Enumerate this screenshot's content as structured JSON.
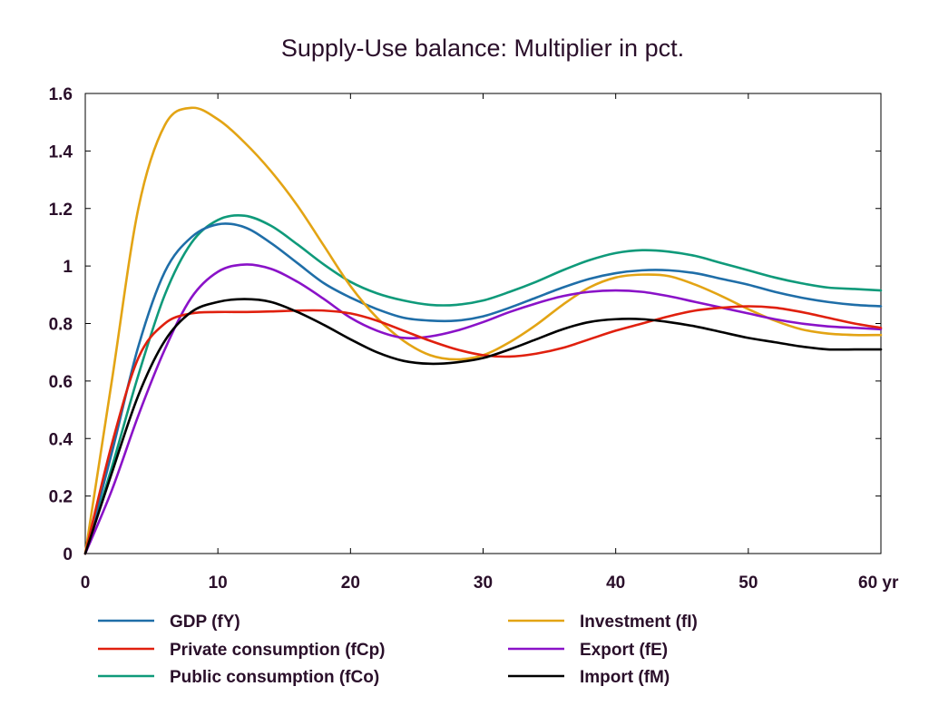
{
  "chart_data": {
    "type": "line",
    "title": "Supply-Use balance: Multiplier in pct.",
    "xlabel": "",
    "ylabel": "",
    "x_unit_label": "yr",
    "xlim": [
      0,
      60
    ],
    "ylim": [
      0,
      1.6
    ],
    "x_ticks": [
      0,
      10,
      20,
      30,
      40,
      50,
      60
    ],
    "x_tick_labels": [
      "0",
      "10",
      "20",
      "30",
      "40",
      "50",
      "60 yr"
    ],
    "y_ticks": [
      0,
      0.2,
      0.4,
      0.6,
      0.8,
      1,
      1.2,
      1.4,
      1.6
    ],
    "y_tick_labels": [
      "0",
      "0.2",
      "0.4",
      "0.6",
      "0.8",
      "1",
      "1.2",
      "1.4",
      "1.6"
    ],
    "grid": false,
    "legend_position": "bottom",
    "x": [
      0,
      2,
      4,
      6,
      8,
      10,
      12,
      14,
      16,
      18,
      20,
      22,
      24,
      26,
      28,
      30,
      32,
      34,
      36,
      38,
      40,
      42,
      44,
      46,
      48,
      50,
      52,
      54,
      56,
      58,
      60
    ],
    "series": [
      {
        "name": "GDP (fY)",
        "color": "#1f6ea8",
        "values": [
          0,
          0.35,
          0.72,
          0.98,
          1.1,
          1.145,
          1.135,
          1.08,
          1.01,
          0.94,
          0.89,
          0.85,
          0.82,
          0.81,
          0.81,
          0.825,
          0.855,
          0.89,
          0.925,
          0.955,
          0.975,
          0.985,
          0.985,
          0.975,
          0.955,
          0.935,
          0.91,
          0.89,
          0.875,
          0.865,
          0.86
        ]
      },
      {
        "name": "Investment (fI)",
        "color": "#e3a414",
        "values": [
          0,
          0.6,
          1.2,
          1.49,
          1.55,
          1.51,
          1.43,
          1.33,
          1.21,
          1.07,
          0.93,
          0.82,
          0.74,
          0.69,
          0.675,
          0.69,
          0.735,
          0.795,
          0.865,
          0.925,
          0.96,
          0.97,
          0.965,
          0.935,
          0.895,
          0.85,
          0.81,
          0.78,
          0.765,
          0.76,
          0.76
        ]
      },
      {
        "name": "Private consumption (fCp)",
        "color": "#e0200e",
        "values": [
          0,
          0.38,
          0.68,
          0.8,
          0.835,
          0.84,
          0.84,
          0.842,
          0.845,
          0.845,
          0.835,
          0.81,
          0.775,
          0.74,
          0.71,
          0.69,
          0.685,
          0.695,
          0.715,
          0.745,
          0.775,
          0.8,
          0.825,
          0.845,
          0.855,
          0.86,
          0.855,
          0.84,
          0.82,
          0.8,
          0.785
        ]
      },
      {
        "name": "Export (fE)",
        "color": "#8a12c8",
        "values": [
          0,
          0.22,
          0.48,
          0.71,
          0.89,
          0.98,
          1.005,
          0.99,
          0.945,
          0.885,
          0.82,
          0.775,
          0.75,
          0.755,
          0.775,
          0.805,
          0.84,
          0.87,
          0.895,
          0.91,
          0.915,
          0.91,
          0.895,
          0.875,
          0.855,
          0.835,
          0.815,
          0.8,
          0.79,
          0.785,
          0.78
        ]
      },
      {
        "name": "Public consumption (fCo)",
        "color": "#0f9a7a",
        "values": [
          0,
          0.3,
          0.62,
          0.9,
          1.08,
          1.16,
          1.175,
          1.14,
          1.075,
          1.005,
          0.945,
          0.905,
          0.88,
          0.865,
          0.865,
          0.88,
          0.91,
          0.945,
          0.985,
          1.02,
          1.045,
          1.055,
          1.05,
          1.035,
          1.01,
          0.985,
          0.96,
          0.94,
          0.925,
          0.92,
          0.915
        ]
      },
      {
        "name": "Import (fM)",
        "color": "#000000",
        "values": [
          0,
          0.28,
          0.55,
          0.74,
          0.84,
          0.875,
          0.885,
          0.875,
          0.84,
          0.795,
          0.745,
          0.7,
          0.67,
          0.66,
          0.665,
          0.68,
          0.71,
          0.745,
          0.78,
          0.805,
          0.815,
          0.815,
          0.805,
          0.79,
          0.77,
          0.75,
          0.735,
          0.72,
          0.71,
          0.71,
          0.71
        ]
      }
    ]
  },
  "legend": {
    "left": [
      {
        "label": "GDP (fY)",
        "color": "#1f6ea8"
      },
      {
        "label": "Private consumption (fCp)",
        "color": "#e0200e"
      },
      {
        "label": "Public consumption (fCo)",
        "color": "#0f9a7a"
      }
    ],
    "right": [
      {
        "label": "Investment (fI)",
        "color": "#e3a414"
      },
      {
        "label": "Export (fE)",
        "color": "#8a12c8"
      },
      {
        "label": "Import (fM)",
        "color": "#000000"
      }
    ]
  }
}
